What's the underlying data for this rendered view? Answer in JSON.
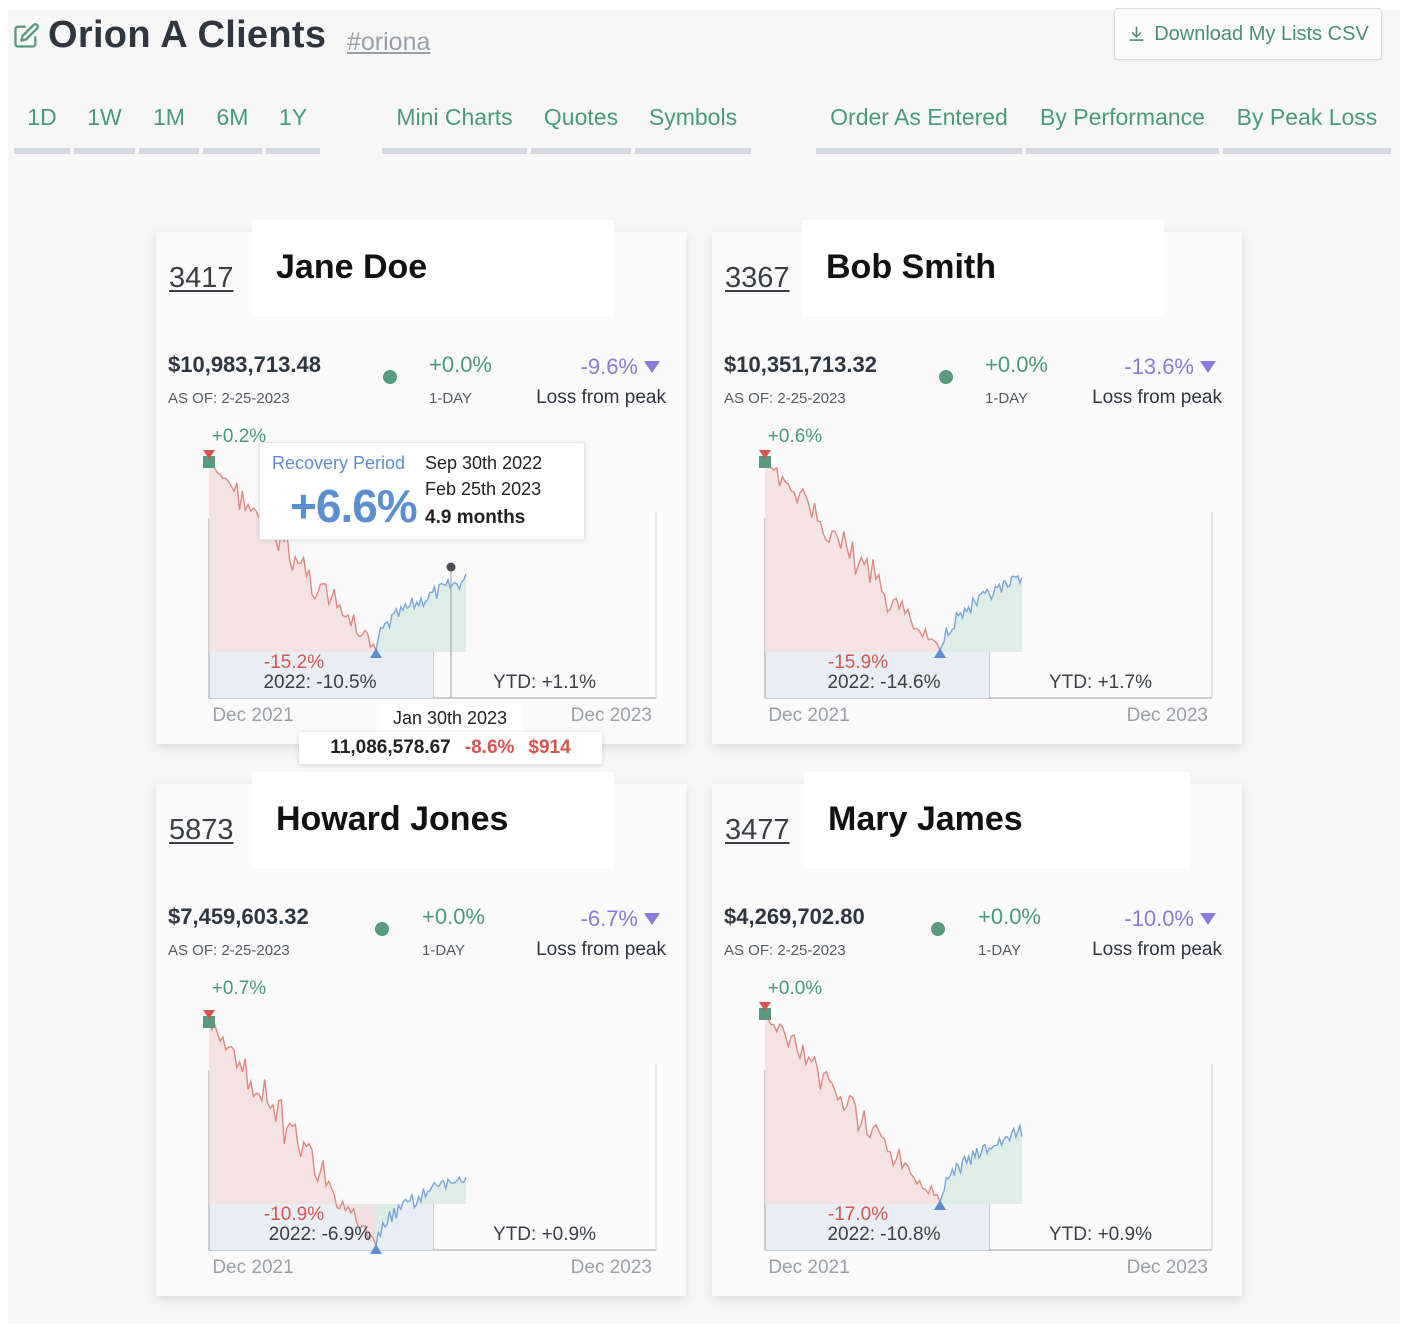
{
  "header": {
    "title": "Orion A Clients",
    "tag": "#oriona",
    "download_label": "Download My Lists CSV"
  },
  "range_tabs": [
    {
      "label": "1D",
      "active": true
    },
    {
      "label": "1W",
      "active": false
    },
    {
      "label": "1M",
      "active": false
    },
    {
      "label": "6M",
      "active": false
    },
    {
      "label": "1Y",
      "active": false
    }
  ],
  "view_tabs": [
    {
      "label": "Mini Charts",
      "active": true
    },
    {
      "label": "Quotes",
      "active": false
    },
    {
      "label": "Symbols",
      "active": false
    }
  ],
  "sort_tabs": [
    {
      "label": "Order As Entered",
      "active": true
    },
    {
      "label": "By Performance",
      "active": false
    },
    {
      "label": "By Peak Loss",
      "active": false
    }
  ],
  "colors": {
    "accent_green": "#5a9b80",
    "loss_red": "#d9534f",
    "recovery_blue": "#5b8fd0",
    "peak_purple": "#8b7bd9"
  },
  "cards": [
    {
      "id": "3417",
      "name": "Jane Doe",
      "value": "$10,983,713.48",
      "as_of": "AS OF: 2-25-2023",
      "day_pct": "+0.0%",
      "day_label": "1-DAY",
      "loss_pct": "-9.6%",
      "loss_label": "Loss from peak",
      "peak_label": "+0.2%",
      "trough_label": "-15.2%",
      "year_label": "2022: -10.5%",
      "ytd_label": "YTD: +1.1%",
      "start_label": "Dec 2021",
      "end_label": "Dec 2023"
    },
    {
      "id": "3367",
      "name": "Bob Smith",
      "value": "$10,351,713.32",
      "as_of": "AS OF: 2-25-2023",
      "day_pct": "+0.0%",
      "day_label": "1-DAY",
      "loss_pct": "-13.6%",
      "loss_label": "Loss from peak",
      "peak_label": "+0.6%",
      "trough_label": "-15.9%",
      "year_label": "2022: -14.6%",
      "ytd_label": "YTD: +1.7%",
      "start_label": "Dec 2021",
      "end_label": "Dec 2023"
    },
    {
      "id": "5873",
      "name": "Howard Jones",
      "value": "$7,459,603.32",
      "as_of": "AS OF: 2-25-2023",
      "day_pct": "+0.0%",
      "day_label": "1-DAY",
      "loss_pct": "-6.7%",
      "loss_label": "Loss from peak",
      "peak_label": "+0.7%",
      "trough_label": "-10.9%",
      "year_label": "2022: -6.9%",
      "ytd_label": "YTD: +0.9%",
      "start_label": "Dec 2021",
      "end_label": "Dec 2023"
    },
    {
      "id": "3477",
      "name": "Mary James",
      "value": "$4,269,702.80",
      "as_of": "AS OF: 2-25-2023",
      "day_pct": "+0.0%",
      "day_label": "1-DAY",
      "loss_pct": "-10.0%",
      "loss_label": "Loss from peak",
      "peak_label": "+0.0%",
      "trough_label": "-17.0%",
      "year_label": "2022: -10.8%",
      "ytd_label": "YTD: +0.9%",
      "start_label": "Dec 2021",
      "end_label": "Dec 2023"
    }
  ],
  "recovery_tooltip": {
    "label": "Recovery Period",
    "start_date": "Sep 30th 2022",
    "end_date": "Feb 25th 2023",
    "pct": "+6.6%",
    "duration": "4.9 months"
  },
  "hover_tooltip": {
    "date": "Jan 30th 2023",
    "amount": "11,086,578.67",
    "pct": "-8.6%",
    "loss": "$914"
  }
}
